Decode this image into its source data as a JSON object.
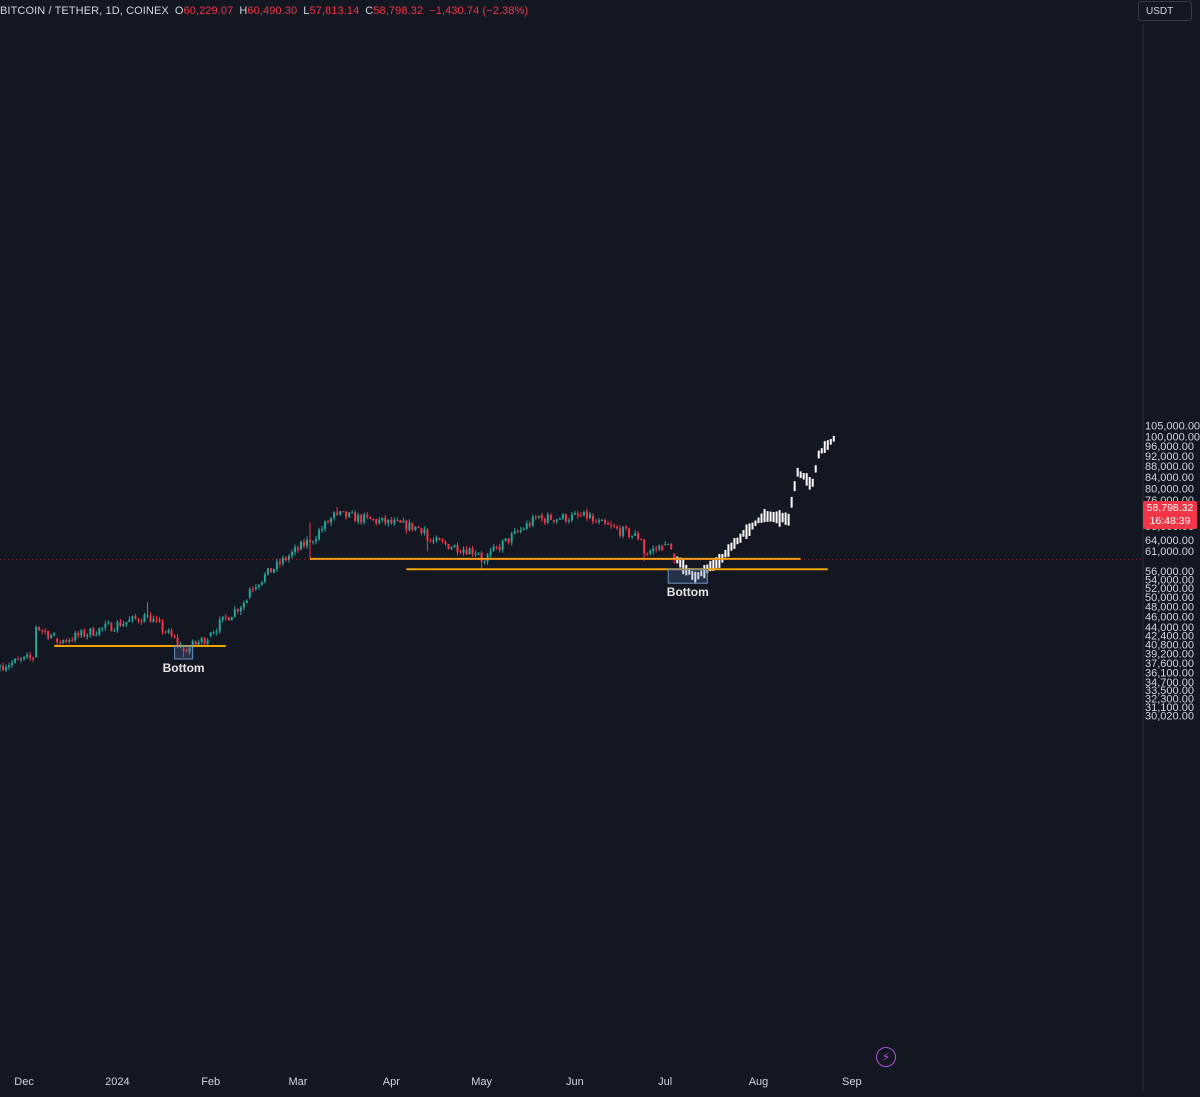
{
  "header": {
    "symbol": "BITCOIN / TETHER, 1D, COINEX",
    "o_label": "O",
    "o_value": "60,229.07",
    "h_label": "H",
    "h_value": "60,490.30",
    "l_label": "L",
    "l_value": "57,813.14",
    "c_label": "C",
    "c_value": "58,798.32",
    "change": "−1,430.74 (−2.38%)",
    "currency": "USDT"
  },
  "last_price": {
    "value": "58,798.32",
    "countdown": "16:48:39"
  },
  "colors": {
    "background": "#131722",
    "up": "#26a69a",
    "down": "#f23645",
    "projection": "#ffffff",
    "support": "#f0a500",
    "box": "#4a6fa5"
  },
  "chart_data": {
    "type": "candlestick",
    "title": "",
    "timeframe": "1D",
    "xlabel": "",
    "ylabel": "",
    "x_ticks": [
      "Dec",
      "2024",
      "Feb",
      "Mar",
      "Apr",
      "May",
      "Jun",
      "Jul",
      "Aug",
      "Sep"
    ],
    "y_ticks": [
      "105,000.00",
      "100,000.00",
      "96,000.00",
      "92,000.00",
      "88,000.00",
      "84,000.00",
      "80,000.00",
      "76,000.00",
      "72,000.00",
      "68,000.00",
      "64,000.00",
      "61,000.00",
      "56,000.00",
      "54,000.00",
      "52,000.00",
      "50,000.00",
      "48,000.00",
      "46,000.00",
      "44,000.00",
      "42,400.00",
      "40,800.00",
      "39,200.00",
      "37,600.00",
      "36,100.00",
      "34,700.00",
      "33,500.00",
      "32,300.00",
      "31,100.00",
      "30,020.00"
    ],
    "y_scale": "log",
    "ylim": [
      30020,
      105000
    ],
    "xlim": [
      "2023-11-23",
      "2024-09-06"
    ],
    "key_points_ohlc": [
      [
        "2023-11-23",
        37000,
        37500,
        36300,
        37200
      ],
      [
        "2023-12-05",
        38600,
        44200,
        38500,
        44000
      ],
      [
        "2023-12-12",
        41800,
        42000,
        40300,
        41200
      ],
      [
        "2024-01-11",
        46100,
        48900,
        45600,
        46200
      ],
      [
        "2024-01-23",
        40000,
        40500,
        38600,
        39700
      ],
      [
        "2024-02-01",
        42300,
        43000,
        42000,
        42900
      ],
      [
        "2024-02-14",
        50000,
        52200,
        49600,
        51800
      ],
      [
        "2024-03-05",
        64000,
        69000,
        59000,
        63500
      ],
      [
        "2024-03-14",
        72000,
        73800,
        71000,
        71400
      ],
      [
        "2024-04-13",
        67000,
        67300,
        61000,
        63800
      ],
      [
        "2024-05-01",
        60600,
        61000,
        56500,
        58300
      ],
      [
        "2024-05-21",
        71400,
        71900,
        69200,
        70100
      ],
      [
        "2024-06-07",
        71000,
        71900,
        68500,
        69300
      ],
      [
        "2024-06-24",
        64200,
        64200,
        58400,
        60300
      ],
      [
        "2024-07-01",
        62700,
        63800,
        62500,
        62900
      ],
      [
        "2024-07-04",
        60229.07,
        60490.3,
        57813.14,
        58798.32
      ]
    ],
    "projection": {
      "description_points": [
        [
          "2024-07-05",
          58800
        ],
        [
          "2024-07-11",
          54500
        ],
        [
          "2024-07-20",
          59500
        ],
        [
          "2024-07-27",
          66000
        ],
        [
          "2024-08-03",
          71500
        ],
        [
          "2024-08-11",
          70500
        ],
        [
          "2024-08-14",
          86000
        ],
        [
          "2024-08-19",
          82000
        ],
        [
          "2024-08-21",
          93000
        ],
        [
          "2024-08-26",
          99500
        ]
      ]
    },
    "support_lines": [
      {
        "price": 40500,
        "from": "2023-12-11",
        "to": "2024-02-06"
      },
      {
        "price": 59000,
        "from": "2024-03-05",
        "to": "2024-08-15"
      },
      {
        "price": 56400,
        "from": "2024-04-06",
        "to": "2024-08-24"
      }
    ],
    "annotations": [
      {
        "text": "Bottom",
        "date_from": "2024-01-20",
        "date_to": "2024-01-26",
        "price_from": 40500,
        "price_to": 38300
      },
      {
        "text": "Bottom",
        "date_from": "2024-07-02",
        "date_to": "2024-07-15",
        "price_from": 56400,
        "price_to": 53100
      }
    ]
  }
}
